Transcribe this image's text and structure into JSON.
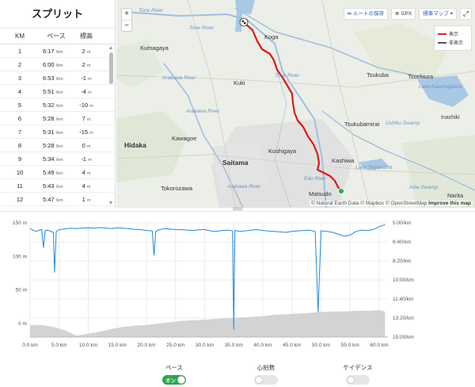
{
  "splits": {
    "title": "スプリット",
    "headers": {
      "km": "KM",
      "pace": "ペース",
      "elev": "標高"
    },
    "pace_unit": "/km",
    "elev_unit": "m",
    "rows": [
      {
        "km": "1",
        "pace": "6:17",
        "elev": "2"
      },
      {
        "km": "2",
        "pace": "6:00",
        "elev": "2"
      },
      {
        "km": "3",
        "pace": "6:53",
        "elev": "-1"
      },
      {
        "km": "4",
        "pace": "5:51",
        "elev": "-4"
      },
      {
        "km": "5",
        "pace": "5:32",
        "elev": "-10"
      },
      {
        "km": "6",
        "pace": "5:28",
        "elev": "7"
      },
      {
        "km": "7",
        "pace": "5:31",
        "elev": "-15"
      },
      {
        "km": "8",
        "pace": "5:28",
        "elev": "0"
      },
      {
        "km": "9",
        "pace": "5:34",
        "elev": "-1"
      },
      {
        "km": "10",
        "pace": "5:49",
        "elev": "4"
      },
      {
        "km": "11",
        "pace": "5:43",
        "elev": "4"
      },
      {
        "km": "12",
        "pace": "5:47",
        "elev": "1"
      }
    ]
  },
  "map": {
    "zoom_in": "+",
    "zoom_out": "−",
    "save_route": "ルートの保存",
    "gpx": "GPX",
    "map_type": "標準マップ",
    "fullscreen_icon": "expand-icon",
    "legend": {
      "show": "表示",
      "hide": "非表示",
      "show_color": "#e02020",
      "hide_color": "#555555"
    },
    "attribution": {
      "natural_earth": "© Natural Earth Data",
      "mapbox": "© Mapbox",
      "osm": "© OpenStreetMap",
      "improve": "Improve this map"
    },
    "route_color": "#e01616",
    "labels": {
      "tone_river_1": "Tone River",
      "tone_river_2": "Tone River",
      "koga": "Koga",
      "kumagaya": "Kumagaya",
      "arakawa_river_1": "Arakawa River",
      "kuki": "Kuki",
      "tone_river_3": "Tone River",
      "tsukuba": "Tsukuba",
      "tsuchiura": "Tsuchiura",
      "lake_kasumigaura": "Lake Kasumigaura",
      "arakawa_river_2": "Arakawa River",
      "tsukubamirai": "Tsukubamirai",
      "ushiku_swamp": "Ushiku Swamp",
      "inashiki": "Inashiki",
      "hidaka": "Hidaka",
      "kawagoe": "Kawagoe",
      "koshigaya": "Koshigaya",
      "kashiwa": "Kashiwa",
      "saitama": "Saitama",
      "lake_teganuma": "Lake Teganuma",
      "tokorozawa": "Tokorozawa",
      "arakawa_river_3": "Arakawa River",
      "edo_river": "Edo River",
      "inba_swamp": "Inba Swamp",
      "matsudo": "Matsudo",
      "narita": "Narita"
    }
  },
  "chart_data": {
    "type": "line",
    "xlabel": "",
    "x_ticks": [
      "0.0 km",
      "5.0 km",
      "10.0 km",
      "15.0 km",
      "20.0 km",
      "25.0 km",
      "30.0 km",
      "35.0 km",
      "40.0 km",
      "45.0 km",
      "50.0 km",
      "55.0 km",
      "60.0 km"
    ],
    "xlim": [
      0,
      61.5
    ],
    "y_left_ticks": [
      "150 m",
      "100 m",
      "50 m",
      "0 m"
    ],
    "y_left_range": [
      -20,
      150
    ],
    "y_right_ticks": [
      "5:00/km",
      "6:40/km",
      "8:20/km",
      "10:00/km",
      "11:40/km",
      "13:20/km",
      "15:00/km"
    ],
    "y_right_range_sec_per_km": [
      300,
      900
    ],
    "series": [
      {
        "type": "area",
        "color": "#d3d3d3",
        "x": [
          0,
          2,
          4,
          6,
          8,
          10,
          12,
          14,
          16,
          18,
          20,
          22,
          24,
          26,
          28,
          30,
          32,
          34,
          36,
          38,
          40,
          42,
          44,
          46,
          48,
          50,
          52,
          54,
          56,
          58,
          60,
          61
        ],
        "values": [
          -2,
          -2,
          -5,
          -10,
          -18,
          -15,
          -12,
          -8,
          -5,
          -3,
          -2,
          0,
          2,
          4,
          5,
          6,
          7,
          8,
          9,
          10,
          11,
          13,
          14,
          15,
          16,
          17,
          18,
          18,
          19,
          19,
          20,
          18
        ]
      },
      {
        "type": "line",
        "color": "#1e88e5",
        "x": [
          0,
          1,
          2,
          2.3,
          2.6,
          3,
          4,
          4.2,
          4.5,
          5,
          6,
          7,
          8,
          9,
          10,
          11,
          12,
          13,
          14,
          15,
          16,
          17,
          18,
          19,
          20,
          21,
          21.3,
          21.6,
          22,
          23,
          24,
          25,
          26,
          27,
          28,
          29,
          30,
          31,
          32,
          33,
          34,
          34.8,
          35,
          35.2,
          36,
          37,
          38,
          39,
          40,
          41,
          42,
          43,
          44,
          45,
          46,
          47,
          48,
          49,
          49.5,
          50,
          51,
          52,
          53,
          54,
          55,
          56,
          57,
          58,
          59,
          60,
          61
        ],
        "values": [
          330,
          345,
          335,
          430,
          340,
          338,
          350,
          560,
          345,
          336,
          332,
          328,
          330,
          327,
          326,
          328,
          325,
          327,
          330,
          326,
          328,
          331,
          334,
          336,
          340,
          342,
          470,
          345,
          338,
          330,
          333,
          335,
          336,
          338,
          340,
          337,
          335,
          342,
          345,
          340,
          338,
          342,
          860,
          340,
          345,
          342,
          338,
          336,
          340,
          343,
          345,
          348,
          350,
          345,
          342,
          340,
          338,
          345,
          770,
          342,
          345,
          350,
          360,
          370,
          365,
          345,
          338,
          340,
          335,
          320,
          310
        ]
      }
    ]
  },
  "toggles": [
    {
      "label": "ペース",
      "state": "on",
      "on_text": "オン"
    },
    {
      "label": "心拍数",
      "state": "off"
    },
    {
      "label": "ケイデンス",
      "state": "off"
    }
  ]
}
